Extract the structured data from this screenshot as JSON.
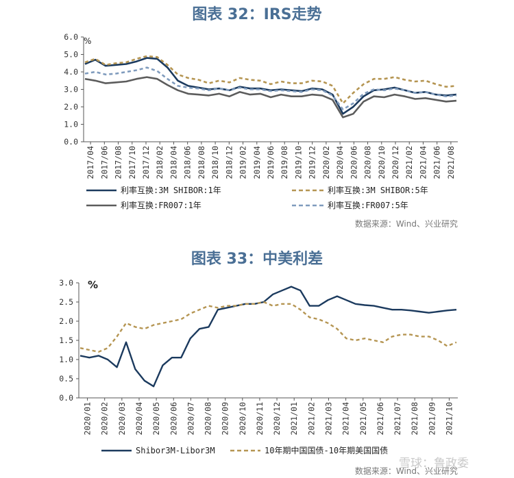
{
  "chart_data": [
    {
      "type": "line",
      "title": "图表 32：IRS走势",
      "ylabel": "%",
      "ylim": [
        0,
        6
      ],
      "y_ticks": [
        "0.0",
        "1.0",
        "2.0",
        "3.0",
        "4.0",
        "5.0",
        "6.0"
      ],
      "x_ticks": [
        "2017/04",
        "2017/06",
        "2017/08",
        "2017/10",
        "2017/12",
        "2018/02",
        "2018/04",
        "2018/06",
        "2018/08",
        "2018/10",
        "2018/12",
        "2019/02",
        "2019/04",
        "2019/06",
        "2019/08",
        "2019/10",
        "2019/12",
        "2020/02",
        "2020/04",
        "2020/06",
        "2020/08",
        "2020/10",
        "2020/12",
        "2021/02",
        "2021/04",
        "2021/06",
        "2021/08"
      ],
      "series": [
        {
          "name": "利率互换:3M SHIBOR:1年",
          "color": "#1b3a5e",
          "style": "solid",
          "values": [
            4.45,
            4.7,
            4.35,
            4.4,
            4.45,
            4.6,
            4.8,
            4.75,
            4.25,
            3.5,
            3.2,
            3.1,
            3.0,
            3.05,
            2.95,
            3.15,
            3.05,
            3.05,
            2.95,
            3.0,
            2.95,
            2.9,
            3.05,
            3.0,
            2.7,
            1.6,
            2.0,
            2.6,
            2.95,
            3.0,
            3.1,
            2.95,
            2.8,
            2.85,
            2.7,
            2.65,
            2.7
          ]
        },
        {
          "name": "利率互换:3M SHIBOR:5年",
          "color": "#b59552",
          "style": "dash",
          "values": [
            4.55,
            4.75,
            4.4,
            4.5,
            4.55,
            4.75,
            4.9,
            4.85,
            4.4,
            3.85,
            3.65,
            3.55,
            3.35,
            3.5,
            3.4,
            3.65,
            3.55,
            3.5,
            3.3,
            3.45,
            3.35,
            3.35,
            3.5,
            3.45,
            3.2,
            2.2,
            2.8,
            3.3,
            3.6,
            3.6,
            3.7,
            3.55,
            3.45,
            3.5,
            3.3,
            3.15,
            3.2
          ]
        },
        {
          "name": "利率互换:FR007:1年",
          "color": "#5c5c5c",
          "style": "solid",
          "values": [
            3.6,
            3.5,
            3.35,
            3.4,
            3.45,
            3.6,
            3.7,
            3.6,
            3.25,
            2.95,
            2.75,
            2.7,
            2.65,
            2.75,
            2.6,
            2.85,
            2.7,
            2.75,
            2.55,
            2.7,
            2.6,
            2.6,
            2.7,
            2.65,
            2.4,
            1.4,
            1.6,
            2.3,
            2.6,
            2.55,
            2.7,
            2.6,
            2.45,
            2.5,
            2.4,
            2.3,
            2.35
          ]
        },
        {
          "name": "利率互换:FR007:5年",
          "color": "#7f9bbd",
          "style": "dash",
          "values": [
            3.9,
            4.0,
            3.85,
            3.9,
            4.0,
            4.1,
            4.25,
            4.05,
            3.6,
            3.2,
            3.1,
            3.05,
            2.95,
            3.05,
            2.95,
            3.1,
            3.0,
            3.0,
            2.9,
            2.95,
            2.9,
            2.85,
            3.0,
            2.95,
            2.65,
            1.85,
            2.2,
            2.75,
            3.0,
            2.95,
            3.05,
            2.95,
            2.8,
            2.85,
            2.7,
            2.6,
            2.65
          ]
        }
      ],
      "source": "数据来源：Wind、兴业研究"
    },
    {
      "type": "line",
      "title": "图表 33：中美利差",
      "ylabel": "%",
      "ylim": [
        0,
        3
      ],
      "y_ticks": [
        "0.0",
        "0.5",
        "1.0",
        "1.5",
        "2.0",
        "2.5",
        "3.0"
      ],
      "x_ticks": [
        "2020/01",
        "2020/02",
        "2020/03",
        "2020/04",
        "2020/05",
        "2020/06",
        "2020/07",
        "2020/08",
        "2020/09",
        "2020/10",
        "2020/11",
        "2020/12",
        "2021/01",
        "2021/02",
        "2021/03",
        "2021/04",
        "2021/05",
        "2021/06",
        "2021/07",
        "2021/08",
        "2021/09",
        "2021/10"
      ],
      "series": [
        {
          "name": "Shibor3M-Libor3M",
          "color": "#1b3a5e",
          "style": "solid",
          "values": [
            1.1,
            1.05,
            1.1,
            1.0,
            0.8,
            1.45,
            0.75,
            0.45,
            0.3,
            0.85,
            1.05,
            1.05,
            1.55,
            1.8,
            1.85,
            2.3,
            2.35,
            2.4,
            2.45,
            2.45,
            2.5,
            2.7,
            2.8,
            2.9,
            2.8,
            2.4,
            2.4,
            2.55,
            2.65,
            2.55,
            2.45,
            2.42,
            2.4,
            2.35,
            2.3,
            2.3,
            2.28,
            2.25,
            2.22,
            2.25,
            2.28,
            2.3
          ]
        },
        {
          "name": "10年期中国国债-10年期美国国债",
          "color": "#b59552",
          "style": "dash",
          "values": [
            1.3,
            1.25,
            1.2,
            1.3,
            1.6,
            1.95,
            1.85,
            1.8,
            1.9,
            1.95,
            2.0,
            2.05,
            2.2,
            2.3,
            2.4,
            2.35,
            2.4,
            2.4,
            2.45,
            2.45,
            2.5,
            2.4,
            2.45,
            2.45,
            2.3,
            2.1,
            2.05,
            1.95,
            1.8,
            1.55,
            1.5,
            1.55,
            1.5,
            1.45,
            1.6,
            1.65,
            1.65,
            1.6,
            1.6,
            1.5,
            1.35,
            1.45
          ]
        }
      ],
      "source": "数据来源：Wind、兴业研究"
    }
  ],
  "watermark": "雪球：鲁政委"
}
